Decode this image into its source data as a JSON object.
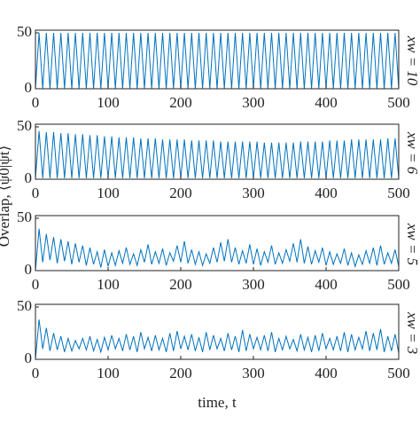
{
  "chart_data": [
    {
      "type": "line",
      "color": "#0072bd",
      "annotation": "xw = 10",
      "ylabel": "Overlap, ⟨ψ0|ψt⟩",
      "x": [
        0,
        5,
        10,
        15,
        20,
        25,
        30,
        35,
        40,
        45,
        50,
        55,
        60,
        65,
        70,
        75,
        80,
        85,
        90,
        95,
        100,
        105,
        110,
        115,
        120,
        125,
        130,
        135,
        140,
        145,
        150,
        155,
        160,
        165,
        170,
        175,
        180,
        185,
        190,
        195,
        200,
        205,
        210,
        215,
        220,
        225,
        230,
        235,
        240,
        245,
        250,
        255,
        260,
        265,
        270,
        275,
        280,
        285,
        290,
        295,
        300,
        305,
        310,
        315,
        320,
        325,
        330,
        335,
        340,
        345,
        350,
        355,
        360,
        365,
        370,
        375,
        380,
        385,
        390,
        395,
        400,
        405,
        410,
        415,
        420,
        425,
        430,
        435,
        440,
        445,
        450,
        455,
        460,
        465,
        470,
        475,
        480,
        485,
        490,
        495,
        500
      ],
      "values": [
        0,
        50,
        0,
        50,
        0,
        50,
        0,
        50,
        0,
        50,
        0,
        50,
        0,
        50,
        0,
        50,
        0,
        50,
        0,
        50,
        0,
        50,
        0,
        50,
        0,
        50,
        0,
        50,
        0,
        50,
        0,
        50,
        0,
        50,
        0,
        50,
        0,
        50,
        0,
        50,
        0,
        50,
        0,
        50,
        0,
        50,
        0,
        50,
        0,
        50,
        0,
        50,
        0,
        50,
        0,
        50,
        0,
        50,
        0,
        50,
        0,
        50,
        0,
        50,
        0,
        50,
        0,
        50,
        0,
        50,
        0,
        50,
        0,
        50,
        0,
        50,
        0,
        50,
        0,
        50,
        0,
        50,
        0,
        50,
        0,
        50,
        0,
        50,
        0,
        50,
        0,
        50,
        0,
        50,
        0,
        50,
        0,
        50,
        0,
        50,
        0
      ],
      "xlim": [
        0,
        500
      ],
      "xticks": [
        0,
        100,
        200,
        300,
        400,
        500
      ],
      "ylim": [
        0,
        50
      ],
      "yticks": [
        0,
        50
      ]
    },
    {
      "type": "line",
      "color": "#0072bd",
      "annotation": "xw = 6",
      "x": [
        0,
        5,
        10,
        15,
        20,
        25,
        30,
        35,
        40,
        45,
        50,
        55,
        60,
        65,
        70,
        75,
        80,
        85,
        90,
        95,
        100,
        105,
        110,
        115,
        120,
        125,
        130,
        135,
        140,
        145,
        150,
        155,
        160,
        165,
        170,
        175,
        180,
        185,
        190,
        195,
        200,
        205,
        210,
        215,
        220,
        225,
        230,
        235,
        240,
        245,
        250,
        255,
        260,
        265,
        270,
        275,
        280,
        285,
        290,
        295,
        300,
        305,
        310,
        315,
        320,
        325,
        330,
        335,
        340,
        345,
        350,
        355,
        360,
        365,
        370,
        375,
        380,
        385,
        390,
        395,
        400,
        405,
        410,
        415,
        420,
        425,
        430,
        435,
        440,
        445,
        450,
        455,
        460,
        465,
        470,
        475,
        480,
        485,
        490,
        495,
        500
      ],
      "values": [
        1,
        46,
        1,
        45,
        1,
        45,
        1,
        44,
        1,
        44,
        1,
        43,
        1,
        43,
        1,
        42,
        1,
        42,
        1,
        41,
        1,
        41,
        1,
        40,
        1,
        40,
        1,
        40,
        1,
        39,
        1,
        39,
        1,
        39,
        1,
        38,
        1,
        38,
        1,
        38,
        1,
        38,
        1,
        37,
        1,
        37,
        1,
        37,
        1,
        37,
        1,
        36,
        1,
        36,
        1,
        36,
        1,
        36,
        1,
        36,
        1,
        36,
        1,
        35,
        1,
        35,
        1,
        35,
        1,
        35,
        1,
        35,
        1,
        36,
        1,
        36,
        1,
        36,
        1,
        36,
        1,
        37,
        1,
        37,
        1,
        37,
        1,
        38,
        1,
        38,
        1,
        38,
        1,
        38,
        1,
        38,
        1,
        39,
        1,
        39,
        1
      ],
      "xlim": [
        0,
        500
      ],
      "xticks": [
        0,
        100,
        200,
        300,
        400,
        500
      ],
      "ylim": [
        0,
        50
      ],
      "yticks": [
        0,
        50
      ]
    },
    {
      "type": "line",
      "color": "#0072bd",
      "annotation": "xw = 5",
      "x": [
        0,
        5,
        10,
        15,
        20,
        25,
        30,
        35,
        40,
        45,
        50,
        55,
        60,
        65,
        70,
        75,
        80,
        85,
        90,
        95,
        100,
        105,
        110,
        115,
        120,
        125,
        130,
        135,
        140,
        145,
        150,
        155,
        160,
        165,
        170,
        175,
        180,
        185,
        190,
        195,
        200,
        205,
        210,
        215,
        220,
        225,
        230,
        235,
        240,
        245,
        250,
        255,
        260,
        265,
        270,
        275,
        280,
        285,
        290,
        295,
        300,
        305,
        310,
        315,
        320,
        325,
        330,
        335,
        340,
        345,
        350,
        355,
        360,
        365,
        370,
        375,
        380,
        385,
        390,
        395,
        400,
        405,
        410,
        415,
        420,
        425,
        430,
        435,
        440,
        445,
        450,
        455,
        460,
        465,
        470,
        475,
        480,
        485,
        490,
        495,
        500
      ],
      "values": [
        0,
        40,
        8,
        35,
        10,
        32,
        7,
        30,
        9,
        28,
        6,
        26,
        8,
        24,
        5,
        22,
        6,
        18,
        3,
        20,
        4,
        17,
        5,
        19,
        7,
        22,
        6,
        16,
        5,
        20,
        8,
        25,
        6,
        18,
        7,
        21,
        5,
        17,
        9,
        24,
        8,
        28,
        7,
        20,
        6,
        18,
        5,
        16,
        7,
        22,
        8,
        27,
        9,
        30,
        8,
        22,
        6,
        19,
        7,
        25,
        6,
        21,
        5,
        18,
        8,
        24,
        6,
        17,
        7,
        20,
        9,
        26,
        8,
        30,
        7,
        23,
        6,
        19,
        8,
        22,
        5,
        18,
        6,
        16,
        7,
        21,
        5,
        17,
        4,
        15,
        6,
        19,
        7,
        22,
        5,
        24,
        6,
        17,
        7,
        20,
        4
      ],
      "xlim": [
        0,
        500
      ],
      "xticks": [
        0,
        100,
        200,
        300,
        400,
        500
      ],
      "ylim": [
        0,
        50
      ],
      "yticks": [
        0,
        50
      ]
    },
    {
      "type": "line",
      "color": "#0072bd",
      "annotation": "xw = 3",
      "xlabel": "time, t",
      "x": [
        0,
        5,
        10,
        15,
        20,
        25,
        30,
        35,
        40,
        45,
        50,
        55,
        60,
        65,
        70,
        75,
        80,
        85,
        90,
        95,
        100,
        105,
        110,
        115,
        120,
        125,
        130,
        135,
        140,
        145,
        150,
        155,
        160,
        165,
        170,
        175,
        180,
        185,
        190,
        195,
        200,
        205,
        210,
        215,
        220,
        225,
        230,
        235,
        240,
        245,
        250,
        255,
        260,
        265,
        270,
        275,
        280,
        285,
        290,
        295,
        300,
        305,
        310,
        315,
        320,
        325,
        330,
        335,
        340,
        345,
        350,
        355,
        360,
        365,
        370,
        375,
        380,
        385,
        390,
        395,
        400,
        405,
        410,
        415,
        420,
        425,
        430,
        435,
        440,
        445,
        450,
        455,
        460,
        465,
        470,
        475,
        480,
        485,
        490,
        495,
        500
      ],
      "values": [
        0,
        38,
        10,
        30,
        8,
        25,
        9,
        22,
        7,
        20,
        8,
        18,
        10,
        20,
        9,
        22,
        8,
        19,
        7,
        21,
        9,
        23,
        10,
        20,
        8,
        24,
        9,
        22,
        7,
        26,
        10,
        21,
        8,
        23,
        9,
        20,
        7,
        25,
        8,
        27,
        10,
        22,
        9,
        24,
        8,
        21,
        7,
        26,
        9,
        23,
        10,
        20,
        8,
        25,
        9,
        22,
        7,
        28,
        8,
        24,
        10,
        21,
        9,
        23,
        8,
        26,
        7,
        20,
        9,
        22,
        10,
        19,
        8,
        24,
        9,
        21,
        7,
        23,
        8,
        25,
        10,
        20,
        9,
        22,
        8,
        26,
        7,
        24,
        9,
        21,
        10,
        27,
        8,
        25,
        9,
        29,
        7,
        22,
        8,
        24,
        6
      ],
      "xlim": [
        0,
        500
      ],
      "xticks": [
        0,
        100,
        200,
        300,
        400,
        500
      ],
      "ylim": [
        0,
        50
      ],
      "yticks": [
        0,
        50
      ]
    }
  ]
}
